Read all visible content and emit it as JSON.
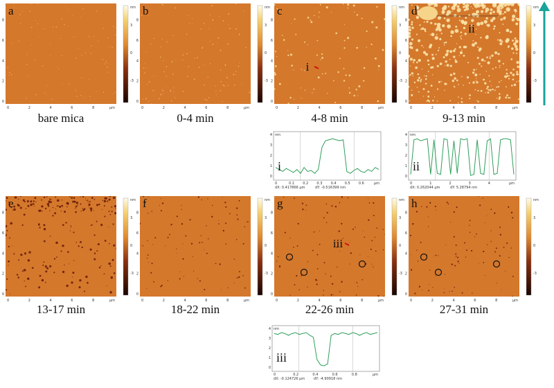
{
  "panels": [
    {
      "letter": "a",
      "caption": "bare mica"
    },
    {
      "letter": "b",
      "caption": "0-4 min"
    },
    {
      "letter": "c",
      "caption": "4-8 min",
      "marker": "i"
    },
    {
      "letter": "d",
      "caption": "9-13 min",
      "marker": "ii"
    },
    {
      "letter": "e",
      "caption": "13-17 min"
    },
    {
      "letter": "f",
      "caption": "18-22 min"
    },
    {
      "letter": "g",
      "caption": "22-26 min",
      "marker": "iii"
    },
    {
      "letter": "h",
      "caption": "27-31 min"
    }
  ],
  "image_axes": {
    "x_ticks": [
      "0",
      "2",
      "4",
      "6",
      "8"
    ],
    "x_unit": "μm",
    "y_ticks": [
      "0",
      "2",
      "4",
      "6",
      "8"
    ]
  },
  "colorbar": {
    "unit": "nm",
    "ticks": [
      "3",
      "0",
      "-3"
    ]
  },
  "profiles": [
    {
      "label": "i",
      "y_unit": "nm",
      "y_ticks": [
        "4",
        "3",
        "2",
        "1",
        "0"
      ],
      "x_ticks": [
        "0",
        "0.1",
        "0.2",
        "0.3",
        "0.4",
        "0.5",
        "0.6"
      ],
      "x_unit": "μm",
      "dx": "dX: 0.417866 μm",
      "dy": "dY: -0.516399 nm"
    },
    {
      "label": "ii",
      "y_unit": "nm",
      "y_ticks": [
        "4",
        "3",
        "2",
        "1",
        "0"
      ],
      "x_ticks": [
        "0",
        "1",
        "2",
        "3",
        "4"
      ],
      "x_unit": "μm",
      "dx": "dX: 0.262044 μm",
      "dy": "dY: 5.28794 nm"
    },
    {
      "label": "iii",
      "y_unit": "nm",
      "y_ticks": [
        "4",
        "3",
        "2",
        "1",
        "0"
      ],
      "x_ticks": [
        "0",
        "0.2",
        "0.4",
        "0.6",
        "0.8"
      ],
      "x_unit": "μm",
      "dx": "dX: -0.124726 μm",
      "dy": "dY: -4.90918 nm"
    }
  ]
}
